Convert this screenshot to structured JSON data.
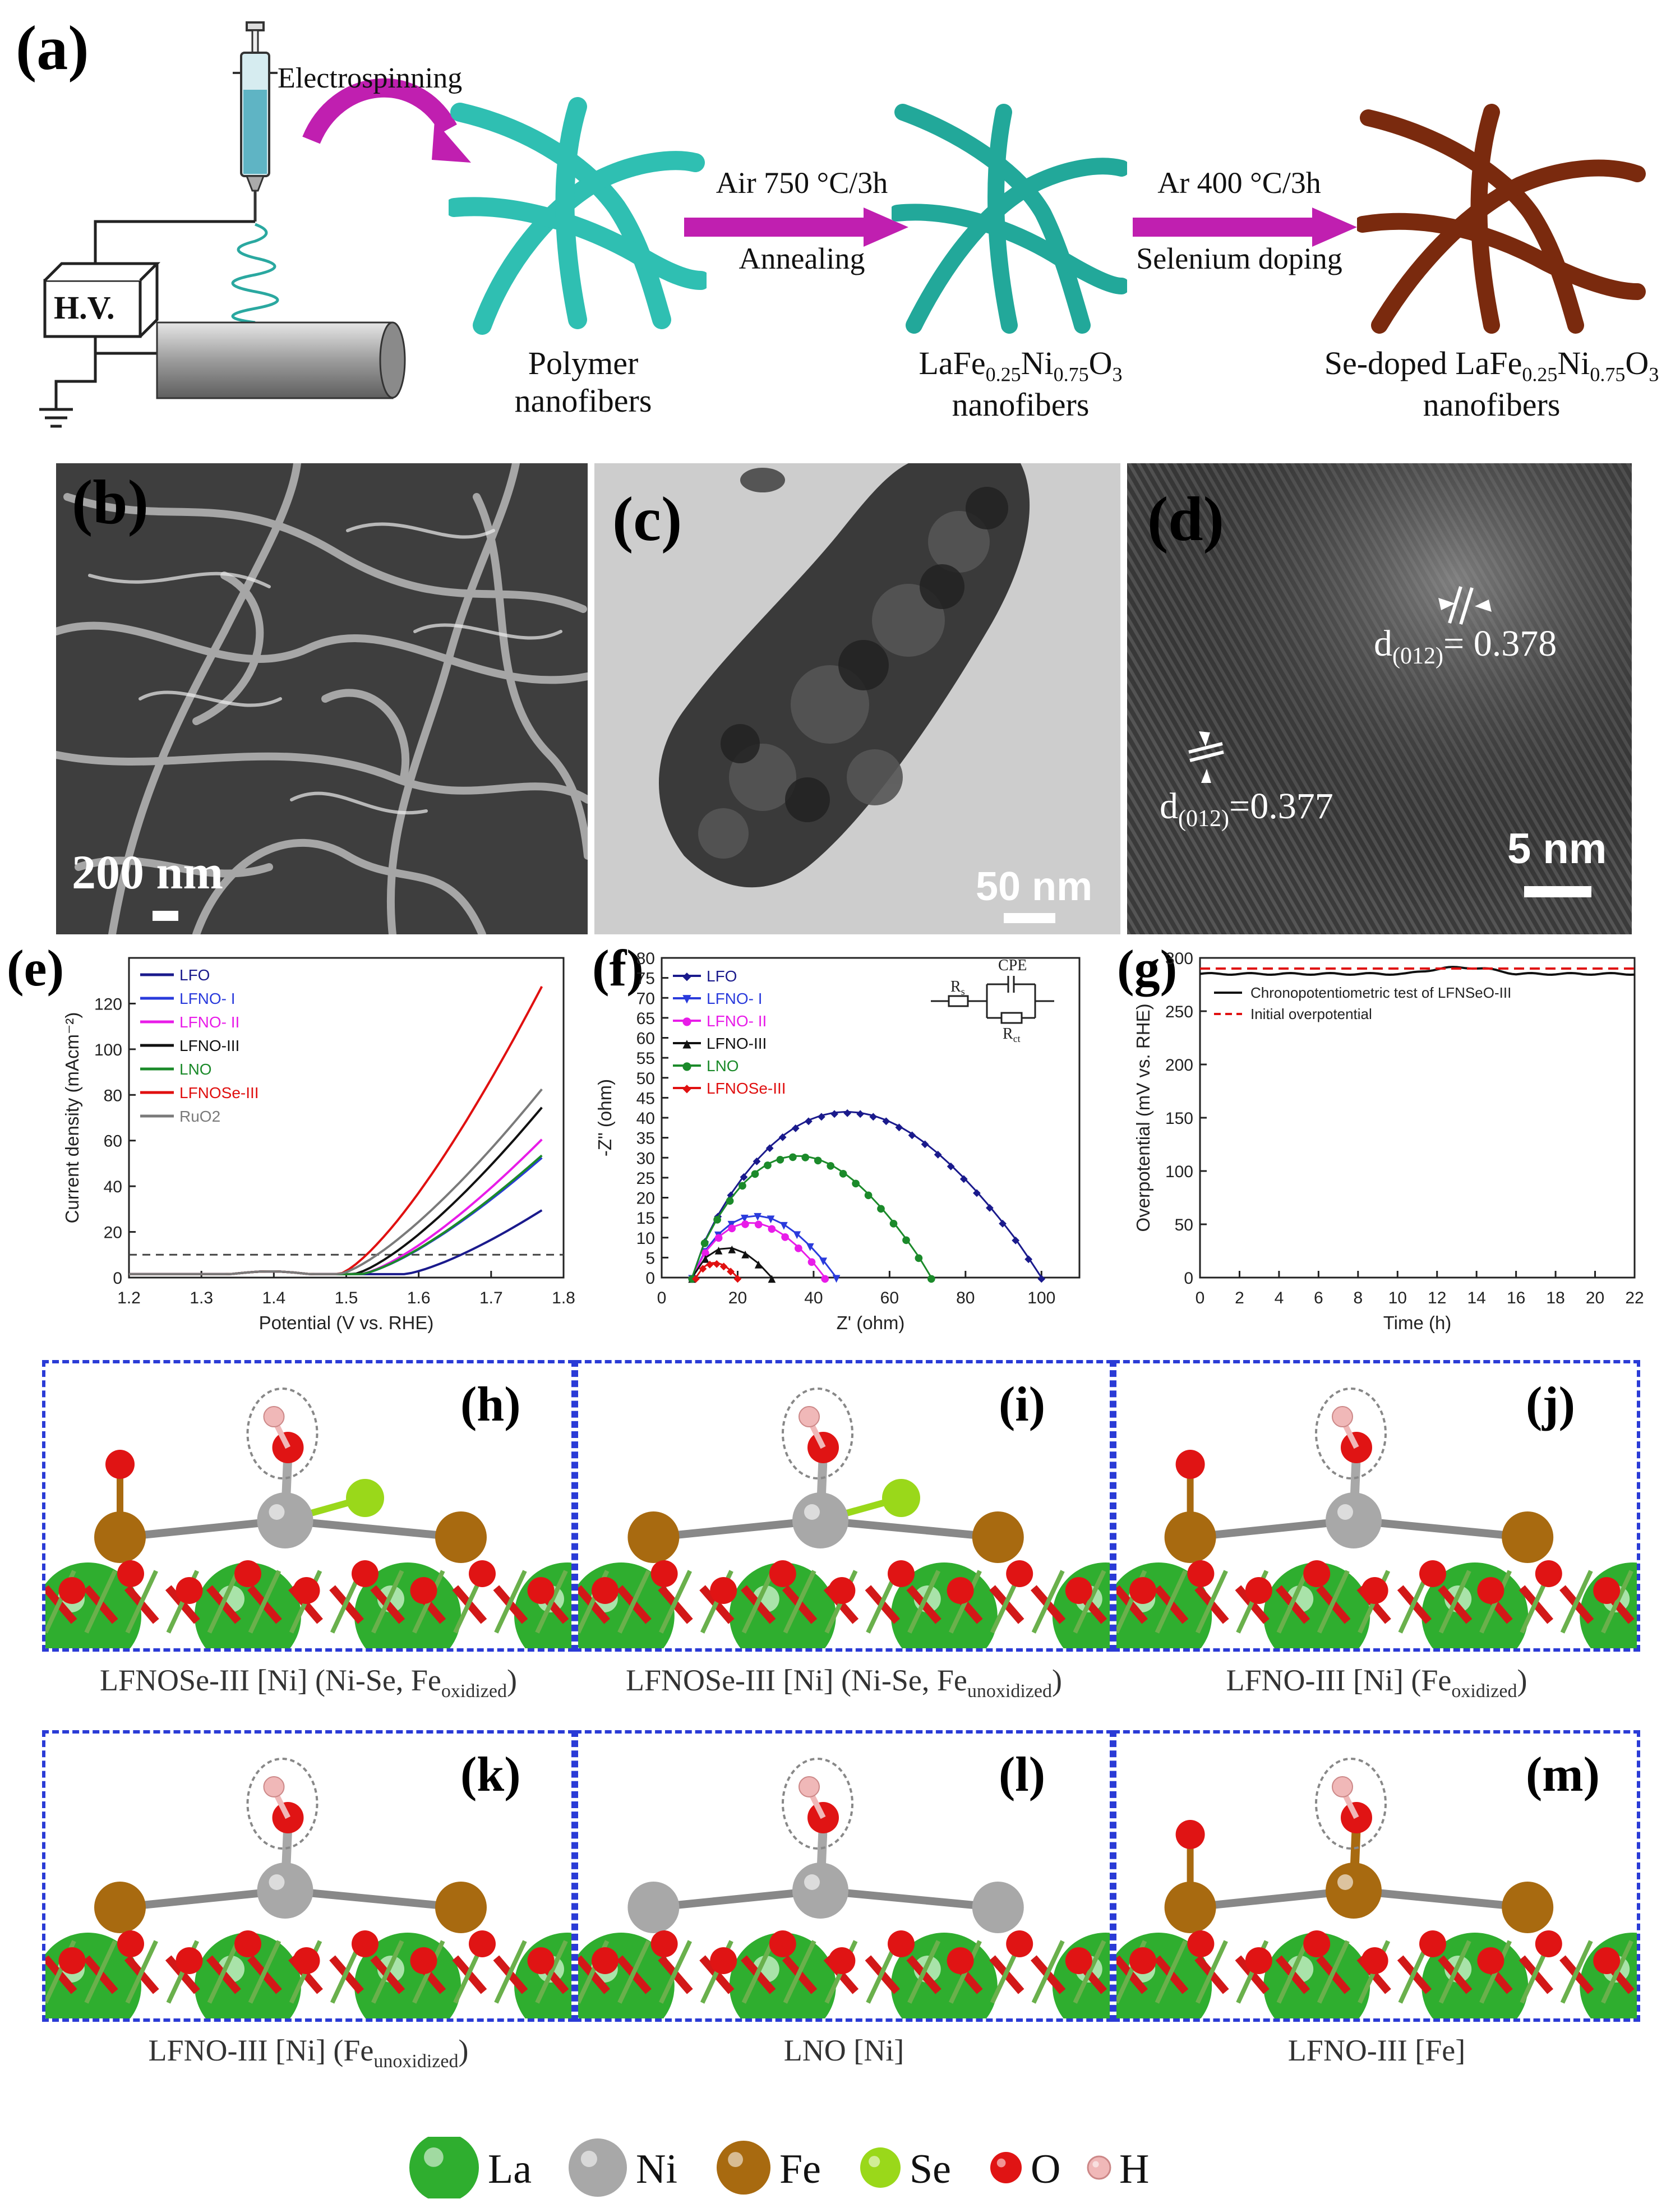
{
  "panel_a": {
    "label": "(a)",
    "hv_label": "H.V.",
    "step_electrospinning": "Electrospinning",
    "arrow1_top": "Air 750 °C/3h",
    "arrow1_bottom": "Annealing",
    "arrow2_top": "Ar 400 °C/3h",
    "arrow2_bottom": "Selenium doping",
    "caption1_l1": "Polymer",
    "caption1_l2": "nanofibers",
    "caption2_pre": "LaFe",
    "caption2_sub1": "0.25",
    "caption2_mid": "Ni",
    "caption2_sub2": "0.75",
    "caption2_post": "O",
    "caption2_sub3": "3",
    "caption2_l2": "nanofibers",
    "caption3_pre": "Se-doped LaFe",
    "caption3_l2": "nanofibers",
    "colors": {
      "polymer": "#2fbfb2",
      "lfno": "#22a89a",
      "se": "#7a2a0e",
      "arrow": "#c01fb0"
    }
  },
  "panel_b": {
    "label": "(b)",
    "scale": "200 nm"
  },
  "panel_c": {
    "label": "(c)",
    "scale": "50 nm"
  },
  "panel_d": {
    "label": "(d)",
    "scale": "5 nm",
    "d1_pre": "d",
    "d1_sub": "(012)",
    "d1_val": "= 0.378",
    "d2_pre": "d",
    "d2_sub": "(012)",
    "d2_val": "=0.377"
  },
  "chart_data": [
    {
      "panel": "(e)",
      "type": "line",
      "xlabel": "Potential (V vs. RHE)",
      "ylabel": "Current density (mAcm⁻²)",
      "xlim": [
        1.2,
        1.8
      ],
      "ylim": [
        0,
        140
      ],
      "xticks": [
        "1.2",
        "1.3",
        "1.4",
        "1.5",
        "1.6",
        "1.7",
        "1.8"
      ],
      "yticks": [
        "0",
        "20",
        "40",
        "60",
        "80",
        "100",
        "120"
      ],
      "reference_line_y": 10,
      "series": [
        {
          "name": "LFO",
          "color": "#1a1a8c",
          "onset": 1.58,
          "end": 28
        },
        {
          "name": "LFNO- I",
          "color": "#2a3bdc",
          "onset": 1.52,
          "end": 51
        },
        {
          "name": "LFNO- II",
          "color": "#e81ce8",
          "onset": 1.52,
          "end": 59
        },
        {
          "name": "LFNO-III",
          "color": "#111111",
          "onset": 1.51,
          "end": 73
        },
        {
          "name": "LNO",
          "color": "#1b8a2a",
          "onset": 1.52,
          "end": 52
        },
        {
          "name": "LFNOSe-III",
          "color": "#e01010",
          "onset": 1.49,
          "end": 126
        },
        {
          "name": "RuO2",
          "color": "#7a7a7a",
          "onset": 1.49,
          "end": 81
        }
      ]
    },
    {
      "panel": "(f)",
      "type": "scatter",
      "xlabel": "Z' (ohm)",
      "ylabel": "-Z\" (ohm)",
      "xlim": [
        0,
        110
      ],
      "ylim": [
        0,
        80
      ],
      "xticks": [
        "0",
        "20",
        "40",
        "60",
        "80",
        "100"
      ],
      "yticks": [
        "0",
        "5",
        "10",
        "15",
        "20",
        "25",
        "30",
        "35",
        "40",
        "45",
        "50",
        "55",
        "60",
        "65",
        "70",
        "75",
        "80"
      ],
      "circuit": {
        "rs": "R",
        "rs_sub": "s",
        "cpe": "CPE",
        "rct": "R",
        "rct_sub": "ct"
      },
      "series": [
        {
          "name": "LFO",
          "color": "#1a1a8c",
          "marker": "◆",
          "start": 8,
          "end": 100,
          "peak": 41.5
        },
        {
          "name": "LFNO- I",
          "color": "#2a3bdc",
          "marker": "▼",
          "start": 8,
          "end": 46,
          "peak": 15.5
        },
        {
          "name": "LFNO- II",
          "color": "#e81ce8",
          "marker": "●",
          "start": 8,
          "end": 43,
          "peak": 13.8
        },
        {
          "name": "LFNO-III",
          "color": "#111111",
          "marker": "▲",
          "start": 8,
          "end": 29,
          "peak": 7.5
        },
        {
          "name": "LNO",
          "color": "#1b8a2a",
          "marker": "●",
          "start": 8,
          "end": 71,
          "peak": 30.5
        },
        {
          "name": "LFNOSe-III",
          "color": "#e01010",
          "marker": "◆",
          "start": 9,
          "end": 20,
          "peak": 3.8
        }
      ]
    },
    {
      "panel": "(g)",
      "type": "line",
      "xlabel": "Time (h)",
      "ylabel": "Overpotential (mV vs. RHE)",
      "xlim": [
        0,
        22
      ],
      "ylim": [
        0,
        300
      ],
      "xticks": [
        "0",
        "2",
        "4",
        "6",
        "8",
        "10",
        "12",
        "14",
        "16",
        "18",
        "20",
        "22"
      ],
      "yticks": [
        "0",
        "50",
        "100",
        "150",
        "200",
        "250",
        "300"
      ],
      "series": [
        {
          "name": "Chronopotentiometric test of LFNSeO-III",
          "color": "#111111",
          "value": 285
        },
        {
          "name": "Initial overpotential",
          "color": "#e01010",
          "value": 290,
          "dashed": true
        }
      ]
    }
  ],
  "models": [
    {
      "label": "(h)",
      "caption_pre": "LFNOSe-III [Ni] (Ni-Se, Fe",
      "caption_sub": "oxidized",
      "caption_post": ")"
    },
    {
      "label": "(i)",
      "caption_pre": "LFNOSe-III [Ni] (Ni-Se, Fe",
      "caption_sub": "unoxidized",
      "caption_post": ")"
    },
    {
      "label": "(j)",
      "caption_pre": "LFNO-III [Ni] (Fe",
      "caption_sub": "oxidized",
      "caption_post": ")"
    },
    {
      "label": "(k)",
      "caption_pre": "LFNO-III [Ni] (Fe",
      "caption_sub": "unoxidized",
      "caption_post": ")"
    },
    {
      "label": "(l)",
      "caption_pre": "LNO [Ni]",
      "caption_sub": "",
      "caption_post": ""
    },
    {
      "label": "(m)",
      "caption_pre": "LFNO-III [Fe]",
      "caption_sub": "",
      "caption_post": ""
    }
  ],
  "atom_legend": [
    {
      "name": "La",
      "color": "#2fae2f"
    },
    {
      "name": "Ni",
      "color": "#a8a8a8"
    },
    {
      "name": "Fe",
      "color": "#a86a10"
    },
    {
      "name": "Se",
      "color": "#9ad81a"
    },
    {
      "name": "O",
      "color": "#e01414"
    },
    {
      "name": "H",
      "color": "#f0b8b8"
    }
  ]
}
